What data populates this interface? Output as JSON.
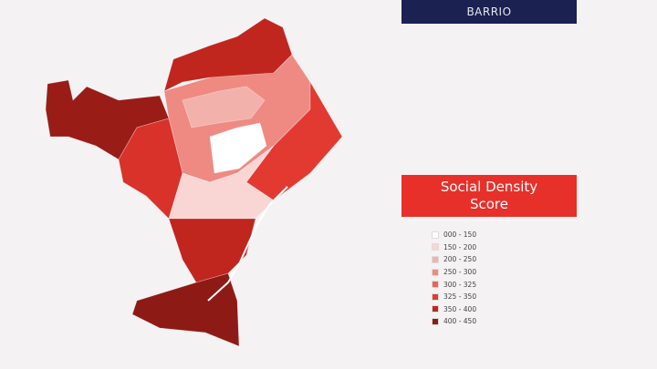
{
  "header": {
    "button": "BARRIO"
  },
  "legend": {
    "title": "Social Density Score",
    "items": [
      {
        "label": "000 - 150",
        "color": "#ffffff"
      },
      {
        "label": "150 - 200",
        "color": "#f9d6d3"
      },
      {
        "label": "200 - 250",
        "color": "#f3b1ab"
      },
      {
        "label": "250 - 300",
        "color": "#ee8a82"
      },
      {
        "label": "300 - 325",
        "color": "#ea6359"
      },
      {
        "label": "325 - 350",
        "color": "#e23a30"
      },
      {
        "label": "350 - 400",
        "color": "#c0261e"
      },
      {
        "label": "400 - 450",
        "color": "#8e1a16"
      }
    ]
  }
}
